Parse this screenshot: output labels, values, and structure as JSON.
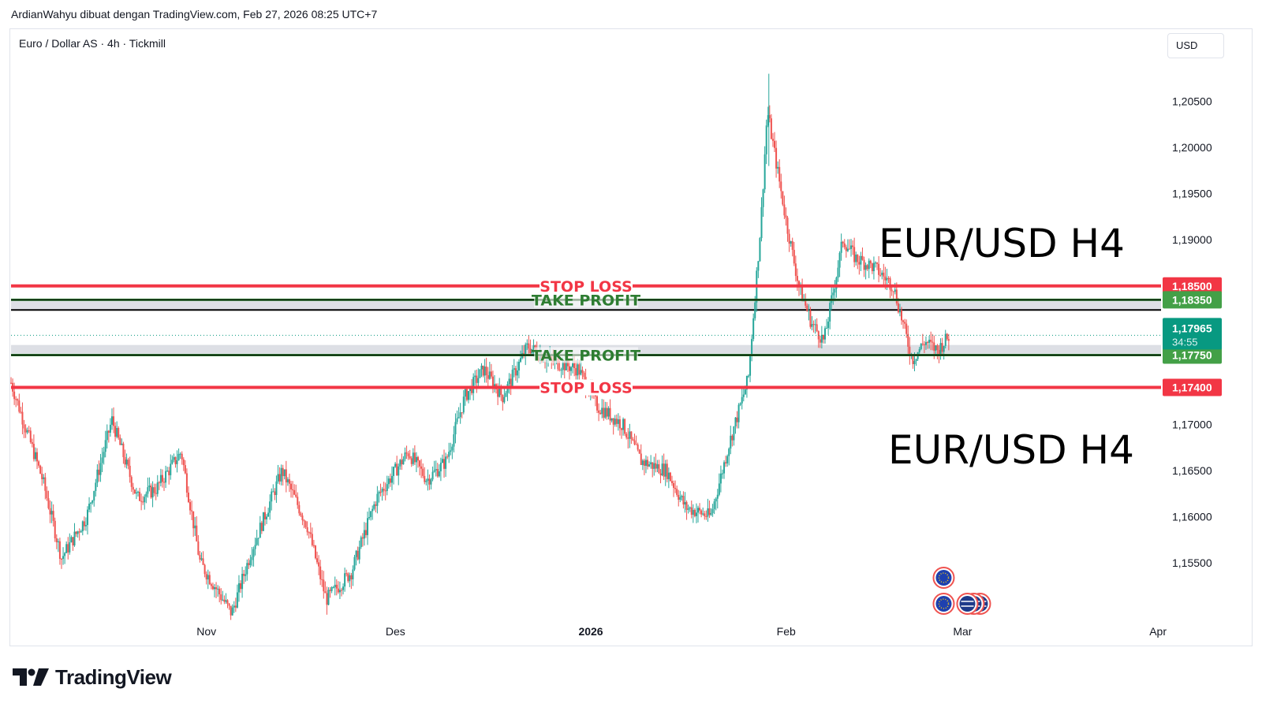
{
  "caption": "ArdianWahyu dibuat dengan TradingView.com, Feb 27, 2026 08:25 UTC+7",
  "symbol_title": "Euro / Dollar AS · 4h · Tickmill",
  "currency_button": "USD",
  "brand": "TradingView",
  "colors": {
    "up": "#26a69a",
    "down": "#ef5350",
    "stop_loss": "#f23645",
    "take_profit": "#2e7d32",
    "take_profit_badge": "#43a047",
    "current_badge": "#089981",
    "zone_fill": "#d1d4dc",
    "text": "#131722"
  },
  "chart_data": {
    "type": "candlestick",
    "timeframe": "4h",
    "title": "Euro / Dollar AS · 4h · Tickmill",
    "x_labels": [
      {
        "label": "Nov",
        "date": "2025-11-01"
      },
      {
        "label": "Des",
        "date": "2025-12-01"
      },
      {
        "label": "2026",
        "date": "2026-01-01"
      },
      {
        "label": "Feb",
        "date": "2026-02-01"
      },
      {
        "label": "Mar",
        "date": "2026-03-01"
      },
      {
        "label": "Apr",
        "date": "2026-04-01"
      }
    ],
    "y_ticks": [
      "1,15500",
      "1,16000",
      "1,16500",
      "1,17000",
      "1,19000",
      "1,19500",
      "1,20000",
      "1,20500"
    ],
    "ylim": [
      1.1485,
      1.2095
    ],
    "price_path": [
      [
        "2025-10-01",
        1.1745
      ],
      [
        "2025-10-06",
        1.164
      ],
      [
        "2025-10-09",
        1.1555
      ],
      [
        "2025-10-13",
        1.16
      ],
      [
        "2025-10-17",
        1.1705
      ],
      [
        "2025-10-21",
        1.162
      ],
      [
        "2025-10-24",
        1.163
      ],
      [
        "2025-10-28",
        1.167
      ],
      [
        "2025-10-31",
        1.155
      ],
      [
        "2025-11-05",
        1.1495
      ],
      [
        "2025-11-08",
        1.156
      ],
      [
        "2025-11-13",
        1.165
      ],
      [
        "2025-11-17",
        1.159
      ],
      [
        "2025-11-20",
        1.151
      ],
      [
        "2025-11-24",
        1.154
      ],
      [
        "2025-11-28",
        1.162
      ],
      [
        "2025-12-03",
        1.167
      ],
      [
        "2025-12-06",
        1.164
      ],
      [
        "2025-12-09",
        1.166
      ],
      [
        "2025-12-12",
        1.173
      ],
      [
        "2025-12-15",
        1.176
      ],
      [
        "2025-12-18",
        1.173
      ],
      [
        "2025-12-22",
        1.1785
      ],
      [
        "2025-12-25",
        1.177
      ],
      [
        "2025-12-30",
        1.176
      ],
      [
        "2026-01-02",
        1.172
      ],
      [
        "2026-01-06",
        1.17
      ],
      [
        "2026-01-09",
        1.166
      ],
      [
        "2026-01-13",
        1.165
      ],
      [
        "2026-01-16",
        1.161
      ],
      [
        "2026-01-20",
        1.16
      ],
      [
        "2026-01-23",
        1.168
      ],
      [
        "2026-01-26",
        1.175
      ],
      [
        "2026-01-28",
        1.192
      ],
      [
        "2026-01-29",
        1.204
      ],
      [
        "2026-02-01",
        1.192
      ],
      [
        "2026-02-03",
        1.185
      ],
      [
        "2026-02-05",
        1.181
      ],
      [
        "2026-02-07",
        1.179
      ],
      [
        "2026-02-10",
        1.19
      ],
      [
        "2026-02-12",
        1.188
      ],
      [
        "2026-02-15",
        1.187
      ],
      [
        "2026-02-18",
        1.185
      ],
      [
        "2026-02-21",
        1.177
      ],
      [
        "2026-02-23",
        1.179
      ],
      [
        "2026-02-25",
        1.178
      ],
      [
        "2026-02-27",
        1.1797
      ]
    ],
    "levels": [
      {
        "type": "stop_loss",
        "price": 1.185,
        "label": "STOP LOSS",
        "badge": "1,18500"
      },
      {
        "type": "take_profit",
        "price": 1.1835,
        "label": "TAKE PROFIT",
        "badge": "1,18350"
      },
      {
        "type": "take_profit",
        "price": 1.1775,
        "label": "TAKE PROFIT",
        "badge": "1,17750"
      },
      {
        "type": "stop_loss",
        "price": 1.174,
        "label": "STOP LOSS",
        "badge": "1,17400"
      }
    ],
    "zones": [
      {
        "from": 1.1824,
        "to": 1.1835
      },
      {
        "from": 1.1775,
        "to": 1.1786
      }
    ],
    "current_price": {
      "value": 1.17965,
      "badge": "1,17965",
      "countdown": "34:55"
    },
    "annotations": [
      "EUR/USD H4",
      "EUR/USD H4"
    ]
  }
}
